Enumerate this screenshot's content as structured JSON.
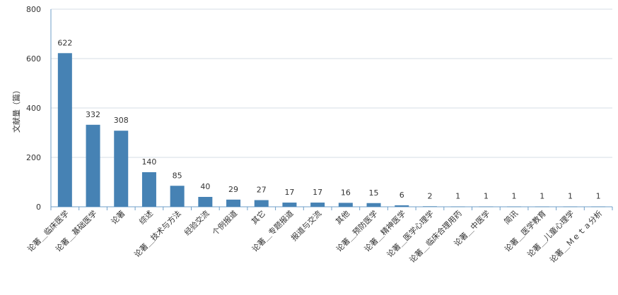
{
  "chart_data": {
    "type": "bar",
    "ylabel": "文献量（篇）",
    "ylim": [
      0,
      800
    ],
    "yticks": [
      0,
      200,
      400,
      600,
      800
    ],
    "grid": true,
    "categories": [
      "论著＿临床医学",
      "论著＿基础医学",
      "论著",
      "综述",
      "论著＿技术与方法",
      "经验交流",
      "个例报道",
      "其它",
      "论著＿专题报道",
      "报道与交流",
      "其他",
      "论著＿预防医学",
      "论著＿精神医学",
      "论著＿医学心理学",
      "论著＿临床合理用药",
      "论著＿中医学",
      "简讯",
      "论著＿医学教育",
      "论著＿儿童心理学",
      "论著＿Ｍｅｔａ分析"
    ],
    "values": [
      622,
      332,
      308,
      140,
      85,
      40,
      29,
      27,
      17,
      17,
      16,
      15,
      6,
      2,
      1,
      1,
      1,
      1,
      1,
      1
    ],
    "colors": {
      "bar": "#4682b4",
      "grid": "#d6dde6",
      "axis": "#6f9fc9"
    }
  }
}
